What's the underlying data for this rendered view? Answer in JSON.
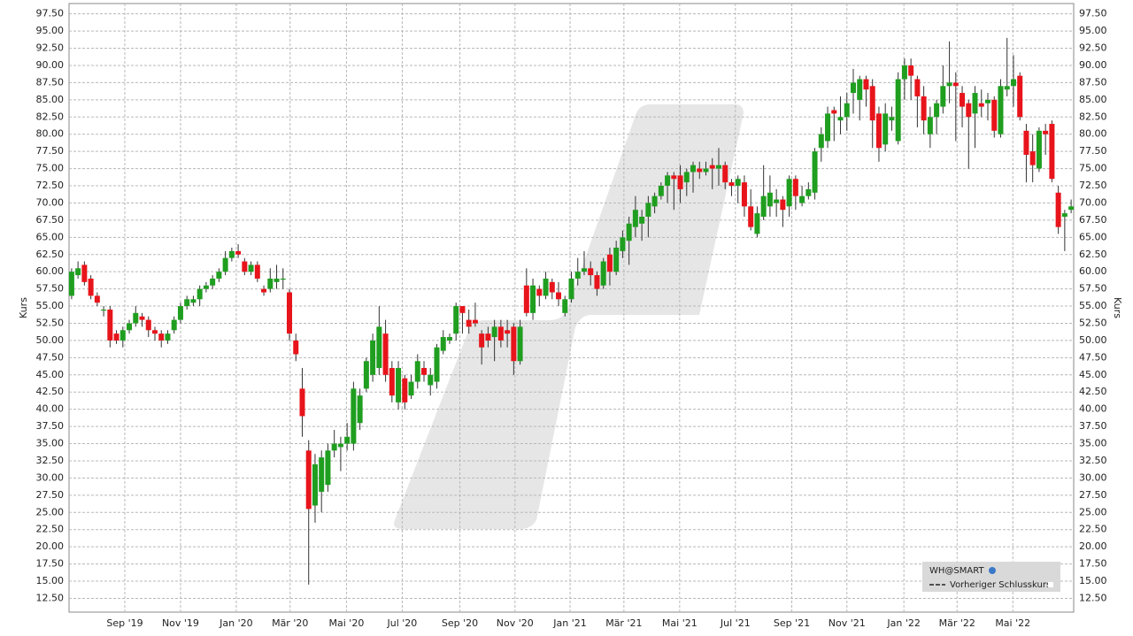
{
  "chart_data": {
    "type": "candlestick",
    "y_label": "Kurs",
    "y2_label": "Kurs",
    "series": [
      {
        "name": "WH@SMART",
        "up_color": "#1f9e1f",
        "down_color": "#e8141b",
        "values": [
          [
            56.5,
            60.5,
            56,
            60
          ],
          [
            59.5,
            61.5,
            59,
            60.5
          ],
          [
            61,
            61.5,
            58,
            58.5
          ],
          [
            59,
            59.5,
            56,
            56.5
          ],
          [
            56.5,
            57,
            55,
            55.5
          ],
          [
            54.5,
            55,
            53.5,
            54.5
          ],
          [
            54.5,
            55,
            49,
            50
          ],
          [
            51,
            51.5,
            49.5,
            50
          ],
          [
            50,
            52,
            49,
            51.5
          ],
          [
            51.5,
            53,
            51,
            52.5
          ],
          [
            52.5,
            55,
            52,
            54
          ],
          [
            53.5,
            54,
            52,
            53
          ],
          [
            53,
            53.5,
            50.5,
            51.5
          ],
          [
            51.5,
            52,
            50,
            51
          ],
          [
            51,
            51.5,
            49,
            50
          ],
          [
            50,
            51.5,
            49.5,
            51
          ],
          [
            51.5,
            53.5,
            51,
            53
          ],
          [
            53,
            55.5,
            52.5,
            55
          ],
          [
            55,
            56.5,
            54.5,
            56
          ],
          [
            55.5,
            56.5,
            55,
            56
          ],
          [
            56,
            58,
            55,
            57.5
          ],
          [
            57.5,
            58.5,
            57,
            58
          ],
          [
            58,
            59.5,
            57.5,
            59
          ],
          [
            59,
            60.5,
            58.5,
            60
          ],
          [
            60,
            63,
            59.5,
            62
          ],
          [
            62,
            63.5,
            61.5,
            63
          ],
          [
            63,
            64,
            62,
            62.5
          ],
          [
            61.5,
            62,
            59.5,
            60
          ],
          [
            60,
            61.5,
            59.5,
            61
          ],
          [
            61,
            61.5,
            58.5,
            59
          ],
          [
            57.5,
            58,
            56.5,
            57
          ],
          [
            57.5,
            60.5,
            57,
            59
          ],
          [
            58.5,
            61,
            57.5,
            59
          ],
          [
            59,
            60.5,
            57.5,
            59
          ],
          [
            57,
            57.5,
            50,
            51
          ],
          [
            50,
            51,
            47,
            48
          ],
          [
            43,
            46,
            36,
            39
          ],
          [
            34,
            35.5,
            14.5,
            25.5
          ],
          [
            26,
            33.5,
            23.5,
            32
          ],
          [
            28,
            34,
            25,
            33
          ],
          [
            29,
            35,
            28,
            34
          ],
          [
            34,
            37,
            33,
            35
          ],
          [
            34.5,
            36,
            31,
            35
          ],
          [
            35,
            38,
            34,
            36
          ],
          [
            35,
            44,
            34,
            43
          ],
          [
            38,
            43,
            37,
            42
          ],
          [
            43,
            47.5,
            42.5,
            47
          ],
          [
            45,
            51,
            44,
            50
          ],
          [
            46,
            55,
            45,
            52
          ],
          [
            51,
            53,
            44,
            45
          ],
          [
            46,
            47,
            41,
            42
          ],
          [
            41,
            47,
            40,
            46
          ],
          [
            44.5,
            45,
            40,
            41
          ],
          [
            42,
            45,
            41.5,
            44
          ],
          [
            44,
            48,
            43,
            47
          ],
          [
            46,
            47,
            44,
            45
          ],
          [
            43.5,
            46,
            42,
            45
          ],
          [
            44,
            49.5,
            43,
            49
          ],
          [
            48.5,
            51.5,
            48,
            50.5
          ],
          [
            50,
            51,
            49.5,
            50.5
          ],
          [
            51,
            55.5,
            50,
            55
          ],
          [
            55,
            55,
            51,
            54
          ],
          [
            53,
            54.5,
            51,
            52
          ],
          [
            53,
            55.5,
            52,
            52.5
          ],
          [
            51,
            51.5,
            46.5,
            49
          ],
          [
            51,
            52,
            49,
            50
          ],
          [
            50.5,
            53,
            47,
            52
          ],
          [
            52,
            53,
            49,
            50
          ],
          [
            51.5,
            53,
            49,
            51
          ],
          [
            52,
            52.5,
            45,
            47
          ],
          [
            47,
            53,
            46.5,
            52
          ],
          [
            58,
            60.5,
            53.5,
            54
          ],
          [
            54,
            59,
            53,
            58
          ],
          [
            57.5,
            58,
            55,
            56.5
          ],
          [
            56.5,
            60,
            56,
            59
          ],
          [
            58.5,
            59,
            56,
            57
          ],
          [
            57,
            58.5,
            55,
            56
          ],
          [
            54,
            56.5,
            53.5,
            56
          ],
          [
            56,
            60,
            55.5,
            59
          ],
          [
            59,
            62,
            58,
            60
          ],
          [
            60,
            63,
            59.5,
            60.5
          ],
          [
            60.5,
            61.5,
            58,
            59.5
          ],
          [
            59.5,
            60,
            56.5,
            57.5
          ],
          [
            58,
            62,
            57.5,
            61.5
          ],
          [
            62.5,
            63.5,
            58,
            60
          ],
          [
            60,
            64.5,
            59.5,
            63.5
          ],
          [
            63,
            66,
            62,
            65
          ],
          [
            64.5,
            68,
            61,
            67
          ],
          [
            66.5,
            71,
            65,
            69
          ],
          [
            67,
            69,
            64.5,
            68
          ],
          [
            68,
            71,
            65,
            70
          ],
          [
            69.5,
            71.5,
            68.5,
            71
          ],
          [
            71,
            73,
            70.5,
            72.5
          ],
          [
            72.5,
            74.5,
            70,
            74
          ],
          [
            74,
            74.5,
            69,
            73.5
          ],
          [
            74,
            75.5,
            70,
            72
          ],
          [
            73,
            75,
            71,
            74.5
          ],
          [
            74.5,
            76,
            71.5,
            75.5
          ],
          [
            75,
            76,
            73.5,
            74.5
          ],
          [
            74.5,
            76,
            74,
            75
          ],
          [
            75.5,
            76.5,
            72,
            75
          ],
          [
            75,
            78,
            72.5,
            75.5
          ],
          [
            75.5,
            76,
            72,
            73
          ],
          [
            73,
            73.5,
            71,
            72.5
          ],
          [
            72.5,
            74,
            70,
            73.5
          ],
          [
            73,
            74,
            68,
            69.5
          ],
          [
            69.5,
            72,
            66,
            66.5
          ],
          [
            65.5,
            69.5,
            65,
            68.5
          ],
          [
            68,
            75.5,
            67.5,
            71
          ],
          [
            69.5,
            74,
            68,
            71.5
          ],
          [
            70,
            72,
            68,
            70.5
          ],
          [
            70.5,
            71,
            66.5,
            69
          ],
          [
            69.5,
            74,
            68,
            73.5
          ],
          [
            73.5,
            74,
            69,
            71
          ],
          [
            70,
            72.5,
            69.5,
            71
          ],
          [
            71,
            73,
            70.5,
            72
          ],
          [
            71.5,
            78,
            70.5,
            77.5
          ],
          [
            78,
            81,
            76,
            80
          ],
          [
            79,
            84,
            78,
            83
          ],
          [
            83.5,
            84,
            79,
            83
          ],
          [
            82,
            85.5,
            80,
            82.5
          ],
          [
            82.5,
            86,
            80.5,
            84.5
          ],
          [
            86,
            89.5,
            83,
            87.5
          ],
          [
            85,
            88.5,
            82,
            88
          ],
          [
            88,
            88.5,
            84,
            86.5
          ],
          [
            87,
            88,
            78,
            82
          ],
          [
            83,
            84,
            76,
            78
          ],
          [
            78.5,
            84.5,
            77.5,
            83
          ],
          [
            82,
            84,
            80.5,
            82.5
          ],
          [
            79,
            89,
            78.5,
            88
          ],
          [
            88,
            91,
            85,
            90
          ],
          [
            90,
            91,
            85,
            88.5
          ],
          [
            88,
            88.5,
            81,
            85.5
          ],
          [
            85.5,
            87,
            80,
            82
          ],
          [
            80,
            84,
            78,
            82.5
          ],
          [
            82.5,
            85,
            80,
            84.5
          ],
          [
            84,
            90,
            83,
            87
          ],
          [
            87,
            93.5,
            84.5,
            87.5
          ],
          [
            87.5,
            89,
            79,
            87
          ],
          [
            86,
            87,
            81,
            84
          ],
          [
            84.5,
            85,
            75,
            82.5
          ],
          [
            83,
            87,
            78,
            86
          ],
          [
            84.5,
            86.5,
            82.5,
            84
          ],
          [
            84.5,
            86,
            82,
            85
          ],
          [
            85,
            85.5,
            79.5,
            80.5
          ],
          [
            80,
            88,
            79.5,
            87
          ],
          [
            86.5,
            94,
            85.5,
            87
          ],
          [
            87,
            91.5,
            84,
            88
          ],
          [
            88.5,
            89,
            82,
            82.5
          ],
          [
            80.5,
            81.5,
            73,
            77
          ],
          [
            77.5,
            80,
            73,
            75.5
          ],
          [
            75,
            81,
            74.5,
            80.5
          ],
          [
            80.5,
            81.5,
            77,
            80
          ],
          [
            81.5,
            82,
            73,
            73.5
          ],
          [
            71.5,
            72.5,
            65.5,
            66.5
          ],
          [
            68,
            69,
            63,
            68.5
          ],
          [
            69,
            70.5,
            68.5,
            69.5
          ]
        ]
      }
    ],
    "reference_line": {
      "name": "Vorheriger Schlusskurs"
    },
    "xlim": [
      -0.4,
      156.4
    ],
    "xticks": [
      {
        "value": 8.3,
        "label": "Sep '19"
      },
      {
        "value": 17,
        "label": "Nov '19"
      },
      {
        "value": 25.7,
        "label": "Jan '20"
      },
      {
        "value": 34.1,
        "label": "Mär '20"
      },
      {
        "value": 42.9,
        "label": "Mai '20"
      },
      {
        "value": 51.6,
        "label": "Jul '20"
      },
      {
        "value": 60.6,
        "label": "Sep '20"
      },
      {
        "value": 69.2,
        "label": "Nov '20"
      },
      {
        "value": 77.8,
        "label": "Jan '21"
      },
      {
        "value": 86.2,
        "label": "Mär '21"
      },
      {
        "value": 94.9,
        "label": "Mai '21"
      },
      {
        "value": 103.6,
        "label": "Jul '21"
      },
      {
        "value": 112.4,
        "label": "Sep '21"
      },
      {
        "value": 121,
        "label": "Nov '21"
      },
      {
        "value": 129.9,
        "label": "Jan '22"
      },
      {
        "value": 138.2,
        "label": "Mär '22"
      },
      {
        "value": 146.9,
        "label": "Mai '22"
      }
    ],
    "ylim": [
      10.5,
      99
    ],
    "yticks": [
      {
        "value": 12.5,
        "label": "12.50"
      },
      {
        "value": 15,
        "label": "15.00"
      },
      {
        "value": 17.5,
        "label": "17.50"
      },
      {
        "value": 20,
        "label": "20.00"
      },
      {
        "value": 22.5,
        "label": "22.50"
      },
      {
        "value": 25,
        "label": "25.00"
      },
      {
        "value": 27.5,
        "label": "27.50"
      },
      {
        "value": 30,
        "label": "30.00"
      },
      {
        "value": 32.5,
        "label": "32.50"
      },
      {
        "value": 35,
        "label": "35.00"
      },
      {
        "value": 37.5,
        "label": "37.50"
      },
      {
        "value": 40,
        "label": "40.00"
      },
      {
        "value": 42.5,
        "label": "42.50"
      },
      {
        "value": 45,
        "label": "45.00"
      },
      {
        "value": 47.5,
        "label": "47.50"
      },
      {
        "value": 50,
        "label": "50.00"
      },
      {
        "value": 52.5,
        "label": "52.50"
      },
      {
        "value": 55,
        "label": "55.00"
      },
      {
        "value": 57.5,
        "label": "57.50"
      },
      {
        "value": 60,
        "label": "60.00"
      },
      {
        "value": 62.5,
        "label": "62.50"
      },
      {
        "value": 65,
        "label": "65.00"
      },
      {
        "value": 67.5,
        "label": "67.50"
      },
      {
        "value": 70,
        "label": "70.00"
      },
      {
        "value": 72.5,
        "label": "72.50"
      },
      {
        "value": 75,
        "label": "75.00"
      },
      {
        "value": 77.5,
        "label": "77.50"
      },
      {
        "value": 80,
        "label": "80.00"
      },
      {
        "value": 82.5,
        "label": "82.50"
      },
      {
        "value": 85,
        "label": "85.00"
      },
      {
        "value": 87.5,
        "label": "87.50"
      },
      {
        "value": 90,
        "label": "90.00"
      },
      {
        "value": 92.5,
        "label": "92.50"
      },
      {
        "value": 95,
        "label": "95.00"
      },
      {
        "value": 97.5,
        "label": "97.50"
      }
    ],
    "grid": true,
    "legend": "lower-right"
  }
}
